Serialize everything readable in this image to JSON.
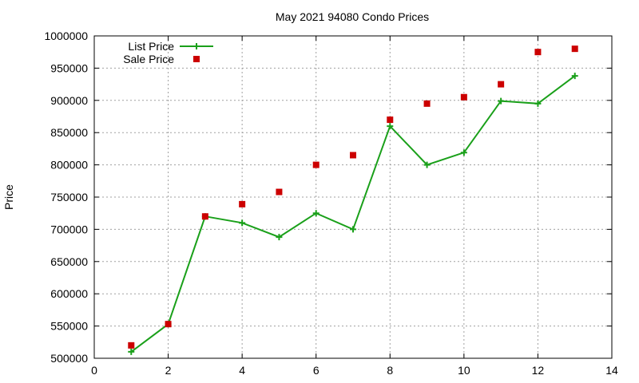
{
  "chart_data": {
    "type": "line",
    "title": "May 2021 94080 Condo Prices",
    "xlabel": "",
    "ylabel": "Price",
    "xlim": [
      0,
      14
    ],
    "ylim": [
      500000,
      1000000
    ],
    "xticks": [
      "0",
      "2",
      "4",
      "6",
      "8",
      "10",
      "12",
      "14"
    ],
    "yticks": [
      "500000",
      "550000",
      "600000",
      "650000",
      "700000",
      "750000",
      "800000",
      "850000",
      "900000",
      "950000",
      "1000000"
    ],
    "grid": true,
    "legend_position": "top-left",
    "series": [
      {
        "name": "List Price",
        "style": "line-with-plus-markers",
        "color": "#1aa01a",
        "x": [
          1,
          2,
          3,
          4,
          5,
          6,
          7,
          8,
          9,
          10,
          11,
          12,
          13
        ],
        "y": [
          510000,
          553000,
          720000,
          710000,
          688000,
          725000,
          700000,
          860000,
          800000,
          819000,
          899000,
          895000,
          938000
        ]
      },
      {
        "name": "Sale Price",
        "style": "square-markers",
        "color": "#cc0000",
        "x": [
          1,
          2,
          3,
          4,
          5,
          6,
          7,
          8,
          9,
          10,
          11,
          12,
          13
        ],
        "y": [
          520000,
          553000,
          720000,
          739000,
          758000,
          800000,
          815000,
          870000,
          895000,
          905000,
          925000,
          975000,
          980000
        ]
      }
    ]
  }
}
